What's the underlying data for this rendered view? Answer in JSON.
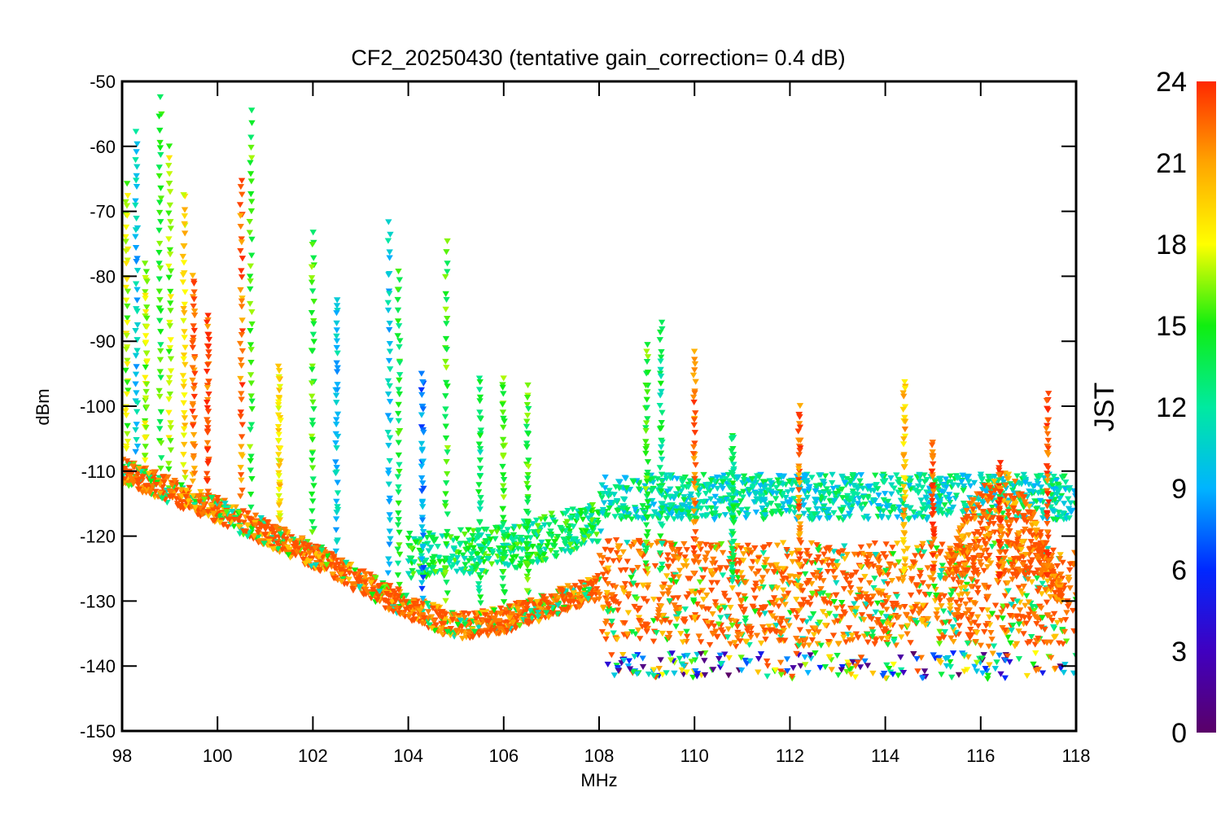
{
  "chart_data": {
    "type": "scatter",
    "title": "CF2_20250430 (tentative gain_correction=  0.4 dB)",
    "xlabel": "MHz",
    "ylabel": "dBm",
    "xlim": [
      98,
      118
    ],
    "ylim": [
      -150,
      -50
    ],
    "x_ticks": [
      "98",
      "100",
      "102",
      "104",
      "106",
      "108",
      "110",
      "112",
      "114",
      "116",
      "118"
    ],
    "y_ticks": [
      "-50",
      "-60",
      "-70",
      "-80",
      "-90",
      "-100",
      "-110",
      "-120",
      "-130",
      "-140",
      "-150"
    ],
    "marker": "down-triangle",
    "grid": false,
    "colorbar": {
      "label": "JST",
      "range": [
        0,
        24
      ],
      "ticks": [
        "0",
        "3",
        "6",
        "9",
        "12",
        "15",
        "18",
        "21",
        "24"
      ],
      "colormap": "rainbow"
    },
    "noise_floor_trend": [
      {
        "x": 98,
        "y": -110
      },
      {
        "x": 100,
        "y": -116
      },
      {
        "x": 102,
        "y": -123
      },
      {
        "x": 104,
        "y": -131
      },
      {
        "x": 105,
        "y": -134
      },
      {
        "x": 106,
        "y": -133
      },
      {
        "x": 108,
        "y": -128
      },
      {
        "x": 110,
        "y": -129
      },
      {
        "x": 114,
        "y": -129
      },
      {
        "x": 118,
        "y": -129
      }
    ],
    "daytime_floor_trend": [
      {
        "x": 104,
        "y": -123
      },
      {
        "x": 106,
        "y": -122
      },
      {
        "x": 108,
        "y": -118
      },
      {
        "x": 108.1,
        "y": -114
      },
      {
        "x": 118,
        "y": -114
      }
    ],
    "signals": [
      {
        "x": 98.1,
        "y_top": -66,
        "color_hour": 17
      },
      {
        "x": 98.3,
        "y_top": -58,
        "color_hour": 10
      },
      {
        "x": 98.5,
        "y_top": -78,
        "color_hour": 17
      },
      {
        "x": 98.8,
        "y_top": -53,
        "color_hour": 15
      },
      {
        "x": 99.0,
        "y_top": -60,
        "color_hour": 17
      },
      {
        "x": 99.3,
        "y_top": -67,
        "color_hour": 19
      },
      {
        "x": 99.5,
        "y_top": -80,
        "color_hour": 22
      },
      {
        "x": 99.8,
        "y_top": -86,
        "color_hour": 23
      },
      {
        "x": 100.5,
        "y_top": -65,
        "color_hour": 22
      },
      {
        "x": 100.7,
        "y_top": -55,
        "color_hour": 15
      },
      {
        "x": 101.3,
        "y_top": -94,
        "color_hour": 19
      },
      {
        "x": 102.0,
        "y_top": -73,
        "color_hour": 15
      },
      {
        "x": 102.5,
        "y_top": -83,
        "color_hour": 10
      },
      {
        "x": 103.6,
        "y_top": -72,
        "color_hour": 10
      },
      {
        "x": 103.8,
        "y_top": -79,
        "color_hour": 14
      },
      {
        "x": 104.3,
        "y_top": -95,
        "color_hour": 8
      },
      {
        "x": 104.8,
        "y_top": -75,
        "color_hour": 15
      },
      {
        "x": 105.5,
        "y_top": -96,
        "color_hour": 13
      },
      {
        "x": 106.0,
        "y_top": -96,
        "color_hour": 15
      },
      {
        "x": 106.5,
        "y_top": -97,
        "color_hour": 15
      },
      {
        "x": 109.0,
        "y_top": -91,
        "color_hour": 15
      },
      {
        "x": 109.3,
        "y_top": -87,
        "color_hour": 13
      },
      {
        "x": 110.0,
        "y_top": -92,
        "color_hour": 22
      },
      {
        "x": 110.8,
        "y_top": -104,
        "color_hour": 13
      },
      {
        "x": 112.2,
        "y_top": -100,
        "color_hour": 22
      },
      {
        "x": 114.4,
        "y_top": -96,
        "color_hour": 20
      },
      {
        "x": 115.0,
        "y_top": -106,
        "color_hour": 23
      },
      {
        "x": 116.4,
        "y_top": -109,
        "color_hour": 23
      },
      {
        "x": 117.4,
        "y_top": -98,
        "color_hour": 23
      }
    ]
  }
}
